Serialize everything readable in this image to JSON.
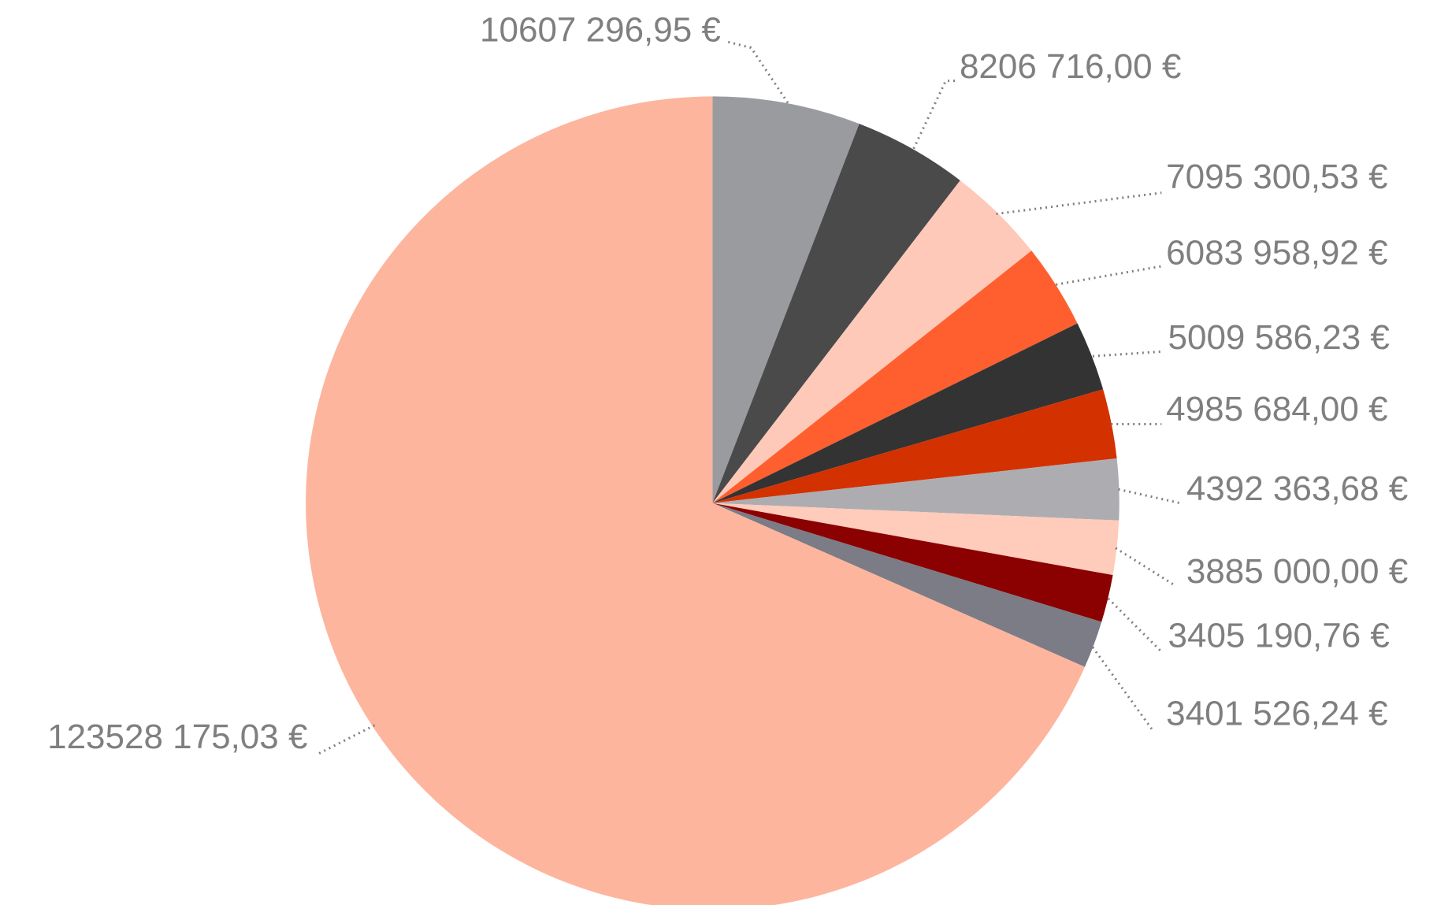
{
  "chart_data": {
    "type": "pie",
    "values": [
      10607296.95,
      8206716.0,
      7095300.53,
      6083958.92,
      5009586.23,
      4985684.0,
      4392363.68,
      3885000.0,
      3405190.76,
      3401526.24,
      123528175.03
    ],
    "value_labels": [
      "10607 296,95 €",
      "8206 716,00 €",
      "7095 300,53 €",
      "6083 958,92 €",
      "5009 586,23 €",
      "4985 684,00 €",
      "4392 363,68 €",
      "3885 000,00 €",
      "3405 190,76 €",
      "3401 526,24 €",
      "123528 175,03 €"
    ],
    "colors": [
      "#9a9b9f",
      "#4a4a4a",
      "#ffc9b9",
      "#ff5f2e",
      "#333333",
      "#d43100",
      "#adadb1",
      "#ffcbbb",
      "#8b0000",
      "#7b7c85",
      "#fdb59e"
    ]
  }
}
